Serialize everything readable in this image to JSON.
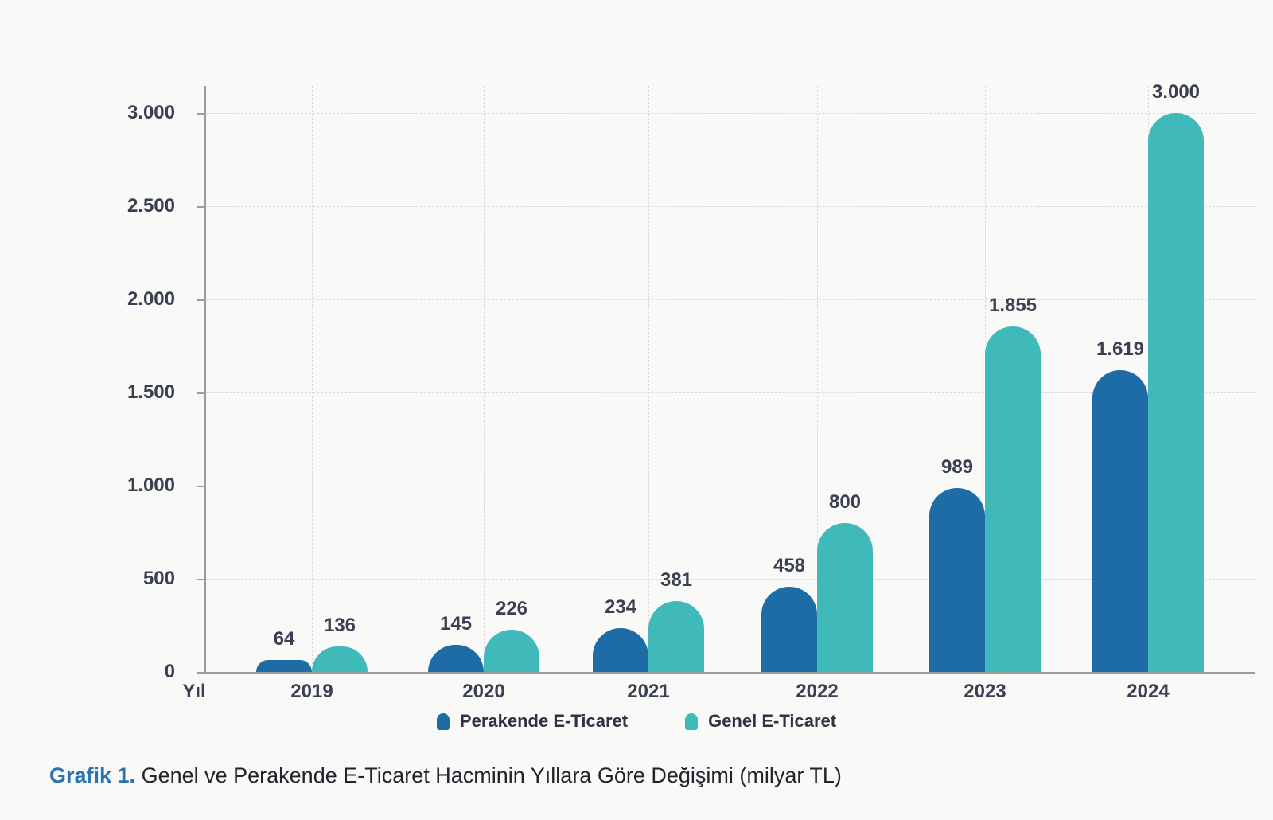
{
  "chart_data": {
    "type": "bar",
    "categories": [
      "2019",
      "2020",
      "2021",
      "2022",
      "2023",
      "2024"
    ],
    "series": [
      {
        "name": "Perakende E-Ticaret",
        "color": "#1e6ca5",
        "values": [
          64,
          145,
          234,
          458,
          989,
          1619
        ],
        "labels": [
          "64",
          "145",
          "234",
          "458",
          "989",
          "1.619"
        ]
      },
      {
        "name": "Genel E-Ticaret",
        "color": "#3fb9ba",
        "values": [
          136,
          226,
          381,
          800,
          1855,
          3000
        ],
        "labels": [
          "136",
          "226",
          "381",
          "800",
          "1.855",
          "3.000"
        ]
      }
    ],
    "xlabel": "Yıl",
    "ylabel": "",
    "ylim": [
      0,
      3000
    ],
    "y_ticks": [
      {
        "value": 0,
        "label": "0"
      },
      {
        "value": 500,
        "label": "500"
      },
      {
        "value": 1000,
        "label": "1.000"
      },
      {
        "value": 1500,
        "label": "1.500"
      },
      {
        "value": 2000,
        "label": "2.000"
      },
      {
        "value": 2500,
        "label": "2.500"
      },
      {
        "value": 3000,
        "label": "3.000"
      }
    ],
    "grid": "dashed, horizontal at y ticks and vertical at category centers",
    "legend_position": "bottom",
    "bar_style": "rounded-top, paired bars touching at category center"
  },
  "legend": {
    "items": [
      {
        "label": "Perakende E-Ticaret",
        "color": "#1e6ca5"
      },
      {
        "label": "Genel E-Ticaret",
        "color": "#3fb9ba"
      }
    ]
  },
  "caption": {
    "prefix": "Grafik 1.",
    "text": " Genel ve Perakende E-Ticaret Hacminin Yıllara Göre Değişimi (milyar TL)",
    "prefix_color": "#2a73ae"
  },
  "colors": {
    "background": "#f9f9f7",
    "axis": "#9c9c9c",
    "gridline": "#d9d9d9",
    "tick_label": "#3a4051",
    "value_label": "#3a4051",
    "legend_text": "#2d3342"
  }
}
